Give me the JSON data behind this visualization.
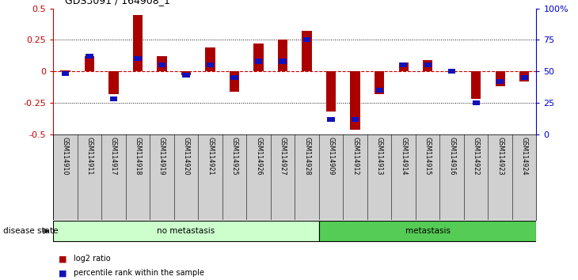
{
  "title": "GDS3091 / 164908_1",
  "samples": [
    "GSM114910",
    "GSM114911",
    "GSM114917",
    "GSM114918",
    "GSM114919",
    "GSM114920",
    "GSM114921",
    "GSM114925",
    "GSM114926",
    "GSM114927",
    "GSM114928",
    "GSM114909",
    "GSM114912",
    "GSM114913",
    "GSM114914",
    "GSM114915",
    "GSM114916",
    "GSM114922",
    "GSM114923",
    "GSM114924"
  ],
  "log2_ratio": [
    0.01,
    0.12,
    -0.18,
    0.45,
    0.12,
    -0.03,
    0.19,
    -0.16,
    0.22,
    0.25,
    0.32,
    -0.32,
    -0.46,
    -0.18,
    0.07,
    0.09,
    0.0,
    -0.22,
    -0.12,
    -0.08
  ],
  "percentile_rank_pct": [
    48,
    62,
    28,
    60,
    55,
    47,
    55,
    45,
    58,
    58,
    75,
    12,
    12,
    35,
    55,
    55,
    50,
    25,
    42,
    45
  ],
  "no_metastasis_count": 11,
  "metastasis_count": 9,
  "ylim_left": [
    -0.5,
    0.5
  ],
  "yticks_left": [
    -0.5,
    -0.25,
    0.0,
    0.25,
    0.5
  ],
  "yticks_right": [
    0,
    25,
    50,
    75,
    100
  ],
  "bar_color": "#aa0000",
  "marker_color": "#1111bb",
  "no_meta_color": "#ccffcc",
  "meta_color": "#55cc55",
  "bg_color": "#ffffff",
  "zero_line_color": "#cc0000",
  "dot_line_color": "#111111",
  "left_axis_color": "#cc0000",
  "right_axis_color": "#0000cc",
  "label_bg_color": "#d0d0d0"
}
